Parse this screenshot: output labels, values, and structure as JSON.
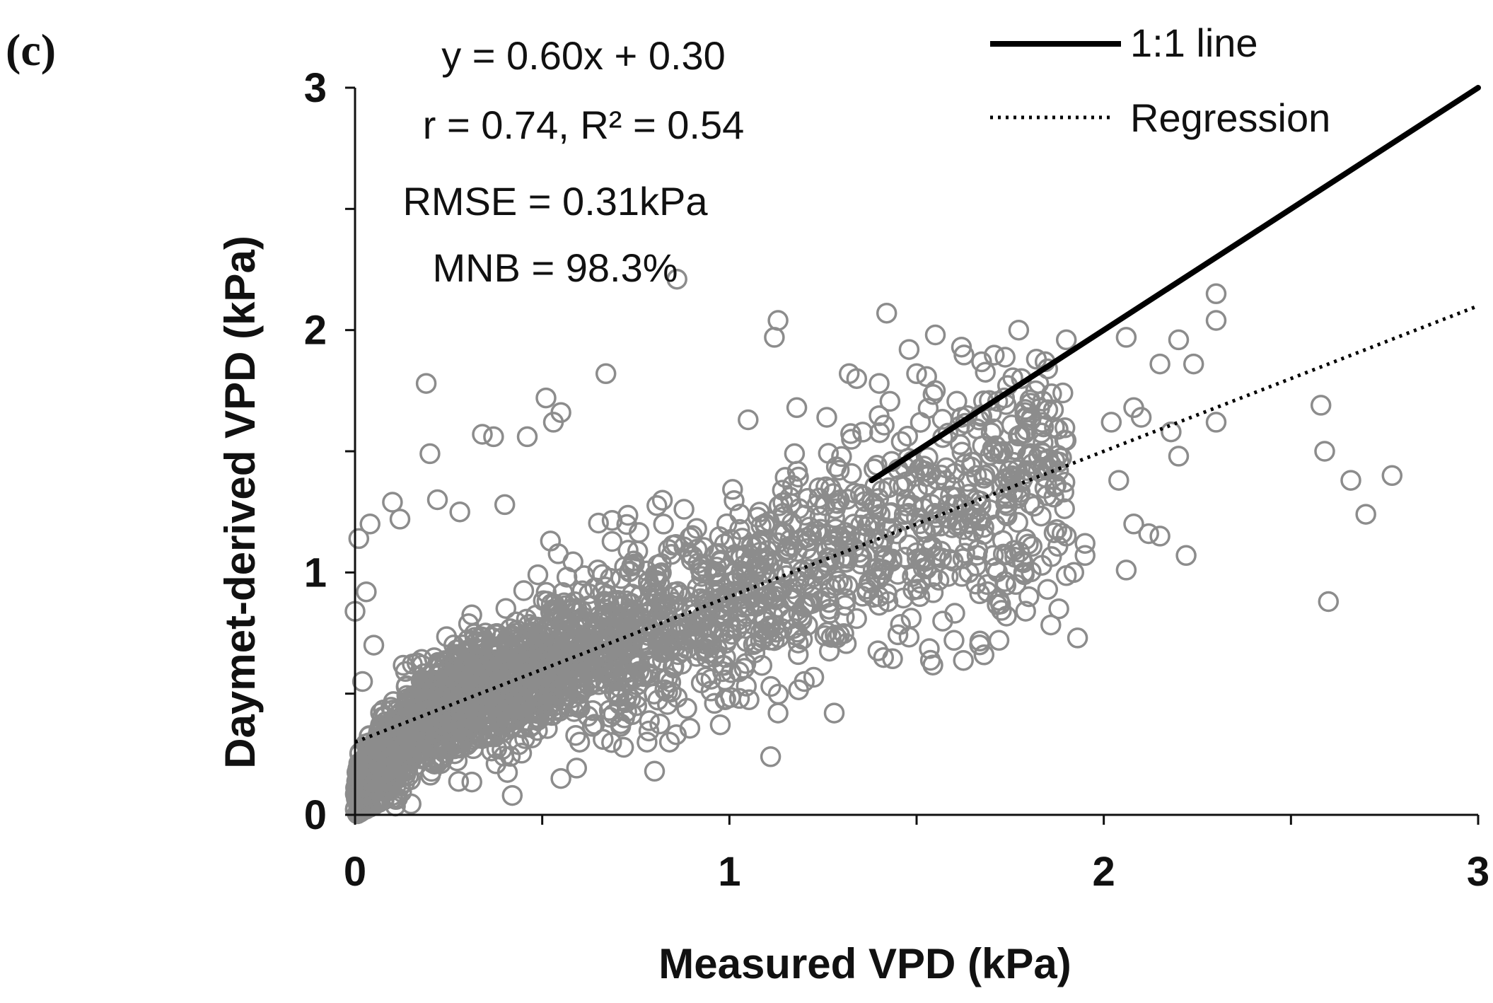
{
  "panel_label": "(c)",
  "colors": {
    "marker": "#8c8c8c",
    "one_to_one": "#000000",
    "regression": "#000000",
    "axis": "#111111"
  },
  "chart_data": {
    "type": "scatter",
    "xlabel": "Measured VPD (kPa)",
    "ylabel": "Daymet-derived VPD (kPa)",
    "xlim": [
      0,
      3
    ],
    "ylim": [
      0,
      3
    ],
    "x_ticks": [
      "0",
      "1",
      "2",
      "3"
    ],
    "y_ticks": [
      "0",
      "1",
      "2",
      "3"
    ],
    "grid": false,
    "legend_position": "top-right",
    "legend": [
      {
        "label": "1:1 line",
        "style": "solid"
      },
      {
        "label": "Regression",
        "style": "dotted"
      }
    ],
    "one_to_one_line": {
      "slope": 1,
      "intercept": 0,
      "x_range": [
        1.38,
        3.0
      ]
    },
    "regression_line": {
      "slope": 0.6,
      "intercept": 0.3,
      "x_range": [
        0,
        3
      ]
    },
    "annotations": [
      "y = 0.60x + 0.30",
      "r = 0.74, R² = 0.54",
      "RMSE = 0.31kPa",
      "MNB = 98.3%"
    ],
    "points": [
      [
        0.86,
        2.21
      ],
      [
        1.12,
        1.97
      ],
      [
        1.13,
        2.04
      ],
      [
        1.42,
        2.07
      ],
      [
        1.55,
        1.98
      ],
      [
        1.48,
        1.92
      ],
      [
        1.62,
        1.93
      ],
      [
        2.06,
        1.97
      ],
      [
        2.2,
        1.96
      ],
      [
        2.3,
        2.15
      ],
      [
        2.3,
        2.04
      ],
      [
        2.24,
        1.86
      ],
      [
        2.15,
        1.86
      ],
      [
        1.9,
        1.96
      ],
      [
        1.82,
        1.88
      ],
      [
        1.85,
        1.84
      ],
      [
        1.78,
        1.8
      ],
      [
        1.32,
        1.82
      ],
      [
        1.34,
        1.8
      ],
      [
        1.4,
        1.78
      ],
      [
        1.5,
        1.82
      ],
      [
        1.55,
        1.75
      ],
      [
        0.67,
        1.82
      ],
      [
        0.19,
        1.78
      ],
      [
        0.51,
        1.72
      ],
      [
        0.55,
        1.66
      ],
      [
        0.53,
        1.62
      ],
      [
        1.05,
        1.63
      ],
      [
        1.18,
        1.68
      ],
      [
        1.26,
        1.64
      ],
      [
        1.62,
        1.64
      ],
      [
        1.7,
        1.66
      ],
      [
        2.08,
        1.68
      ],
      [
        2.1,
        1.64
      ],
      [
        2.02,
        1.62
      ],
      [
        2.3,
        1.62
      ],
      [
        2.58,
        1.69
      ],
      [
        2.59,
        1.5
      ],
      [
        2.66,
        1.38
      ],
      [
        2.77,
        1.4
      ],
      [
        2.7,
        1.24
      ],
      [
        2.6,
        0.88
      ],
      [
        2.22,
        1.07
      ],
      [
        2.12,
        1.16
      ],
      [
        2.15,
        1.15
      ],
      [
        2.06,
        1.01
      ],
      [
        1.92,
        1.0
      ],
      [
        1.95,
        1.07
      ],
      [
        1.93,
        0.73
      ],
      [
        1.88,
        0.85
      ],
      [
        1.85,
        0.93
      ],
      [
        1.9,
        1.15
      ],
      [
        1.95,
        1.12
      ],
      [
        2.04,
        1.38
      ],
      [
        2.08,
        1.2
      ],
      [
        2.2,
        1.48
      ],
      [
        2.18,
        1.58
      ],
      [
        1.28,
        0.42
      ],
      [
        1.13,
        0.42
      ],
      [
        1.11,
        0.24
      ],
      [
        0.8,
        0.18
      ],
      [
        0.78,
        0.3
      ],
      [
        0.84,
        0.3
      ],
      [
        0.55,
        0.15
      ],
      [
        0.42,
        0.08
      ],
      [
        0.2,
        1.49
      ],
      [
        0.34,
        1.57
      ],
      [
        0.37,
        1.56
      ],
      [
        0.46,
        1.56
      ],
      [
        0.01,
        1.14
      ],
      [
        0.04,
        1.2
      ],
      [
        0.1,
        1.29
      ],
      [
        0.03,
        0.92
      ],
      [
        0.0,
        0.84
      ],
      [
        0.02,
        0.55
      ],
      [
        0.05,
        0.7
      ],
      [
        0.12,
        1.22
      ],
      [
        0.22,
        1.3
      ],
      [
        0.28,
        1.25
      ],
      [
        0.4,
        1.28
      ],
      [
        1.6,
        0.72
      ],
      [
        1.68,
        0.66
      ],
      [
        1.72,
        0.72
      ],
      [
        1.74,
        0.82
      ],
      [
        1.8,
        0.9
      ],
      [
        1.4,
        0.9
      ],
      [
        1.2,
        0.55
      ],
      [
        0.96,
        0.46
      ],
      [
        0.72,
        0.4
      ],
      [
        0.6,
        0.3
      ]
    ],
    "dense_cloud": {
      "count": 2600,
      "x_range": [
        0,
        1.9
      ],
      "slope": 0.6,
      "intercept": 0.3
    }
  }
}
